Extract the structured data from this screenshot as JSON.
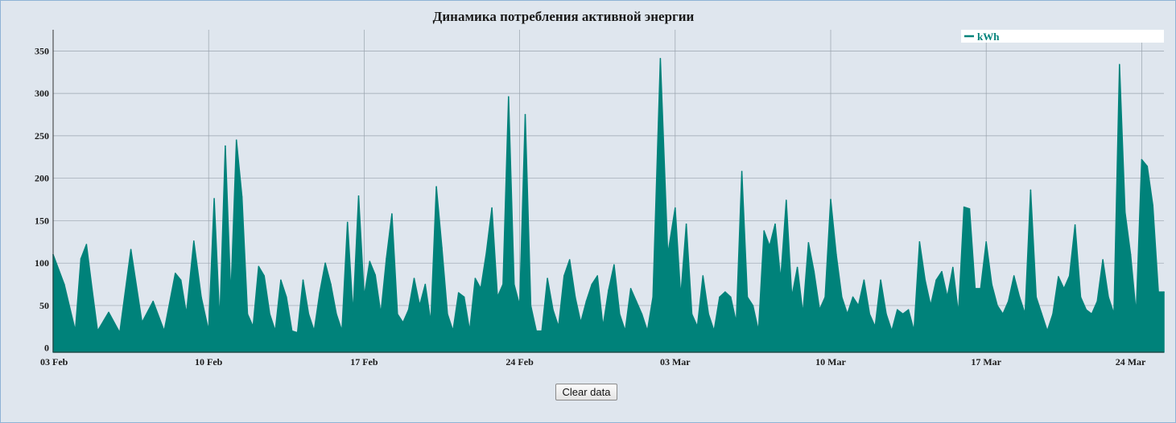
{
  "chart_data": {
    "type": "line",
    "title": "Динамика потребления активной энергии",
    "xlabel": "",
    "ylabel": "",
    "x_tick_labels": [
      "03 Feb",
      "10 Feb",
      "17 Feb",
      "24 Feb",
      "03 Mar",
      "10 Mar",
      "17 Mar",
      "24 Mar"
    ],
    "y_ticks": [
      0,
      50,
      100,
      150,
      200,
      250,
      300,
      350
    ],
    "ylim": [
      -5,
      375
    ],
    "xlim": [
      "2024-02-03",
      "2024-03-24"
    ],
    "grid": true,
    "legend_position": "top-right",
    "fill": true,
    "series": [
      {
        "name": "kWh",
        "color": "#00827a",
        "points": [
          [
            "2024-02-03",
            110
          ],
          [
            "2024-02-03T12:00",
            75
          ],
          [
            "2024-02-04",
            20
          ],
          [
            "2024-02-04T06:00",
            105
          ],
          [
            "2024-02-04T12:00",
            122
          ],
          [
            "2024-02-04T18:00",
            70
          ],
          [
            "2024-02-05",
            20
          ],
          [
            "2024-02-05T12:00",
            42
          ],
          [
            "2024-02-06",
            18
          ],
          [
            "2024-02-06T12:00",
            116
          ],
          [
            "2024-02-07",
            30
          ],
          [
            "2024-02-07T12:00",
            55
          ],
          [
            "2024-02-08",
            20
          ],
          [
            "2024-02-08T12:00",
            88
          ],
          [
            "2024-02-08T18:00",
            80
          ],
          [
            "2024-02-09",
            40
          ],
          [
            "2024-02-09T08:00",
            126
          ],
          [
            "2024-02-09T16:00",
            60
          ],
          [
            "2024-02-10",
            20
          ],
          [
            "2024-02-10T06:00",
            176
          ],
          [
            "2024-02-10T12:00",
            30
          ],
          [
            "2024-02-10T18:00",
            238
          ],
          [
            "2024-02-11",
            60
          ],
          [
            "2024-02-11T06:00",
            245
          ],
          [
            "2024-02-11T12:00",
            178
          ],
          [
            "2024-02-11T18:00",
            40
          ],
          [
            "2024-02-12",
            25
          ],
          [
            "2024-02-12T06:00",
            96
          ],
          [
            "2024-02-12T12:00",
            85
          ],
          [
            "2024-02-12T18:00",
            40
          ],
          [
            "2024-02-13",
            20
          ],
          [
            "2024-02-13T06:00",
            80
          ],
          [
            "2024-02-13T12:00",
            60
          ],
          [
            "2024-02-13T18:00",
            20
          ],
          [
            "2024-02-14",
            18
          ],
          [
            "2024-02-14T06:00",
            80
          ],
          [
            "2024-02-14T12:00",
            40
          ],
          [
            "2024-02-14T18:00",
            20
          ],
          [
            "2024-02-15",
            65
          ],
          [
            "2024-02-15T06:00",
            100
          ],
          [
            "2024-02-15T12:00",
            75
          ],
          [
            "2024-02-15T18:00",
            40
          ],
          [
            "2024-02-16",
            20
          ],
          [
            "2024-02-16T06:00",
            148
          ],
          [
            "2024-02-16T12:00",
            40
          ],
          [
            "2024-02-16T18:00",
            179
          ],
          [
            "2024-02-17",
            60
          ],
          [
            "2024-02-17T06:00",
            102
          ],
          [
            "2024-02-17T12:00",
            86
          ],
          [
            "2024-02-17T18:00",
            40
          ],
          [
            "2024-02-18",
            105
          ],
          [
            "2024-02-18T06:00",
            158
          ],
          [
            "2024-02-18T12:00",
            40
          ],
          [
            "2024-02-18T18:00",
            30
          ],
          [
            "2024-02-19",
            45
          ],
          [
            "2024-02-19T06:00",
            82
          ],
          [
            "2024-02-19T12:00",
            50
          ],
          [
            "2024-02-19T18:00",
            75
          ],
          [
            "2024-02-20",
            30
          ],
          [
            "2024-02-20T06:00",
            190
          ],
          [
            "2024-02-20T12:00",
            118
          ],
          [
            "2024-02-20T18:00",
            40
          ],
          [
            "2024-02-21",
            20
          ],
          [
            "2024-02-21T06:00",
            65
          ],
          [
            "2024-02-21T12:00",
            60
          ],
          [
            "2024-02-21T18:00",
            20
          ],
          [
            "2024-02-22",
            82
          ],
          [
            "2024-02-22T06:00",
            70
          ],
          [
            "2024-02-22T12:00",
            112
          ],
          [
            "2024-02-22T18:00",
            165
          ],
          [
            "2024-02-23",
            60
          ],
          [
            "2024-02-23T06:00",
            75
          ],
          [
            "2024-02-23T12:00",
            296
          ],
          [
            "2024-02-23T18:00",
            75
          ],
          [
            "2024-02-24",
            50
          ],
          [
            "2024-02-24T06:00",
            275
          ],
          [
            "2024-02-24T12:00",
            50
          ],
          [
            "2024-02-24T18:00",
            20
          ],
          [
            "2024-02-25",
            20
          ],
          [
            "2024-02-25T06:00",
            82
          ],
          [
            "2024-02-25T12:00",
            45
          ],
          [
            "2024-02-25T18:00",
            25
          ],
          [
            "2024-02-26",
            85
          ],
          [
            "2024-02-26T06:00",
            104
          ],
          [
            "2024-02-26T12:00",
            60
          ],
          [
            "2024-02-26T18:00",
            30
          ],
          [
            "2024-02-27",
            55
          ],
          [
            "2024-02-27T06:00",
            75
          ],
          [
            "2024-02-27T12:00",
            85
          ],
          [
            "2024-02-27T18:00",
            25
          ],
          [
            "2024-02-28",
            68
          ],
          [
            "2024-02-28T06:00",
            98
          ],
          [
            "2024-02-28T12:00",
            40
          ],
          [
            "2024-02-28T18:00",
            20
          ],
          [
            "2024-02-29",
            70
          ],
          [
            "2024-02-29T06:00",
            55
          ],
          [
            "2024-02-29T12:00",
            40
          ],
          [
            "2024-02-29T18:00",
            20
          ],
          [
            "2024-03-01",
            60
          ],
          [
            "2024-03-01T08:00",
            341
          ],
          [
            "2024-03-01T16:00",
            110
          ],
          [
            "2024-03-02",
            165
          ],
          [
            "2024-03-02T06:00",
            60
          ],
          [
            "2024-03-02T12:00",
            146
          ],
          [
            "2024-03-02T18:00",
            40
          ],
          [
            "2024-03-03",
            25
          ],
          [
            "2024-03-03T06:00",
            85
          ],
          [
            "2024-03-03T12:00",
            40
          ],
          [
            "2024-03-03T18:00",
            20
          ],
          [
            "2024-03-04",
            60
          ],
          [
            "2024-03-04T06:00",
            66
          ],
          [
            "2024-03-04T12:00",
            60
          ],
          [
            "2024-03-04T18:00",
            30
          ],
          [
            "2024-03-05",
            208
          ],
          [
            "2024-03-05T06:00",
            60
          ],
          [
            "2024-03-05T12:00",
            50
          ],
          [
            "2024-03-05T18:00",
            20
          ],
          [
            "2024-03-06",
            138
          ],
          [
            "2024-03-06T06:00",
            120
          ],
          [
            "2024-03-06T12:00",
            146
          ],
          [
            "2024-03-06T18:00",
            80
          ],
          [
            "2024-03-07",
            174
          ],
          [
            "2024-03-07T06:00",
            60
          ],
          [
            "2024-03-07T12:00",
            95
          ],
          [
            "2024-03-07T18:00",
            40
          ],
          [
            "2024-03-08",
            124
          ],
          [
            "2024-03-08T06:00",
            90
          ],
          [
            "2024-03-08T12:00",
            45
          ],
          [
            "2024-03-08T18:00",
            60
          ],
          [
            "2024-03-09",
            175
          ],
          [
            "2024-03-09T06:00",
            110
          ],
          [
            "2024-03-09T12:00",
            60
          ],
          [
            "2024-03-09T18:00",
            40
          ],
          [
            "2024-03-10",
            60
          ],
          [
            "2024-03-10T06:00",
            50
          ],
          [
            "2024-03-10T12:00",
            80
          ],
          [
            "2024-03-10T18:00",
            40
          ],
          [
            "2024-03-11",
            25
          ],
          [
            "2024-03-11T06:00",
            80
          ],
          [
            "2024-03-11T12:00",
            40
          ],
          [
            "2024-03-11T18:00",
            20
          ],
          [
            "2024-03-12",
            45
          ],
          [
            "2024-03-12T06:00",
            40
          ],
          [
            "2024-03-12T12:00",
            45
          ],
          [
            "2024-03-12T18:00",
            20
          ],
          [
            "2024-03-13",
            125
          ],
          [
            "2024-03-13T06:00",
            80
          ],
          [
            "2024-03-13T12:00",
            50
          ],
          [
            "2024-03-13T18:00",
            80
          ],
          [
            "2024-03-14",
            90
          ],
          [
            "2024-03-14T06:00",
            60
          ],
          [
            "2024-03-14T12:00",
            95
          ],
          [
            "2024-03-14T18:00",
            40
          ],
          [
            "2024-03-15",
            166
          ],
          [
            "2024-03-15T06:00",
            164
          ],
          [
            "2024-03-15T12:00",
            70
          ],
          [
            "2024-03-15T18:00",
            70
          ],
          [
            "2024-03-16",
            125
          ],
          [
            "2024-03-16T06:00",
            75
          ],
          [
            "2024-03-16T12:00",
            50
          ],
          [
            "2024-03-16T18:00",
            40
          ],
          [
            "2024-03-17",
            55
          ],
          [
            "2024-03-17T06:00",
            85
          ],
          [
            "2024-03-17T12:00",
            60
          ],
          [
            "2024-03-17T18:00",
            40
          ],
          [
            "2024-03-18",
            186
          ],
          [
            "2024-03-18T06:00",
            60
          ],
          [
            "2024-03-18T12:00",
            40
          ],
          [
            "2024-03-18T18:00",
            20
          ],
          [
            "2024-03-19",
            40
          ],
          [
            "2024-03-19T06:00",
            84
          ],
          [
            "2024-03-19T12:00",
            70
          ],
          [
            "2024-03-19T18:00",
            85
          ],
          [
            "2024-03-20",
            145
          ],
          [
            "2024-03-20T06:00",
            60
          ],
          [
            "2024-03-20T12:00",
            45
          ],
          [
            "2024-03-20T18:00",
            40
          ],
          [
            "2024-03-21",
            55
          ],
          [
            "2024-03-21T06:00",
            104
          ],
          [
            "2024-03-21T12:00",
            60
          ],
          [
            "2024-03-21T18:00",
            40
          ],
          [
            "2024-03-22",
            334
          ],
          [
            "2024-03-22T06:00",
            160
          ],
          [
            "2024-03-22T12:00",
            110
          ],
          [
            "2024-03-22T18:00",
            40
          ],
          [
            "2024-03-23",
            222
          ],
          [
            "2024-03-23T06:00",
            214
          ],
          [
            "2024-03-23T12:00",
            168
          ],
          [
            "2024-03-23T18:00",
            66
          ],
          [
            "2024-03-24",
            66
          ]
        ]
      }
    ]
  },
  "controls": {
    "clear_label": "Clear data"
  }
}
